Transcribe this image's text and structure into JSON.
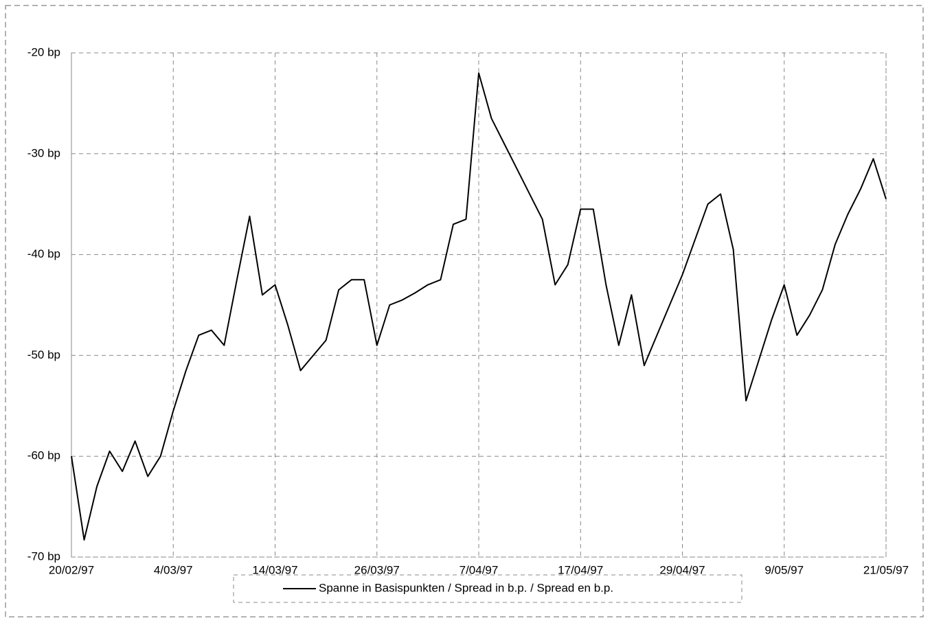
{
  "chart_data": {
    "type": "line",
    "categories": [
      "20/02/97",
      null,
      null,
      null,
      null,
      null,
      null,
      null,
      "4/03/97",
      null,
      null,
      null,
      null,
      null,
      null,
      null,
      "14/03/97",
      null,
      null,
      null,
      null,
      null,
      null,
      null,
      "26/03/97",
      null,
      null,
      null,
      null,
      null,
      null,
      null,
      "7/04/97",
      null,
      null,
      null,
      null,
      null,
      null,
      null,
      "17/04/97",
      null,
      null,
      null,
      null,
      null,
      null,
      null,
      "29/04/97",
      null,
      null,
      null,
      null,
      null,
      null,
      null,
      "9/05/97",
      null,
      null,
      null,
      null,
      null,
      null,
      null,
      "21/05/97"
    ],
    "series": [
      {
        "name": "Spanne in Basispunkten / Spread in b.p. / Spread en b.p.",
        "color": "#000000",
        "values": [
          -60,
          -68.3,
          -63,
          -59.5,
          -61.5,
          -58.5,
          -62,
          -60,
          -55.5,
          -51.5,
          -48,
          -47.5,
          -49,
          -42.5,
          -36.2,
          -44,
          -43,
          -47,
          -51.5,
          -50,
          -48.5,
          -43.5,
          -42.5,
          -42.5,
          -49,
          -45,
          -44.5,
          -43.8,
          -43,
          -42.5,
          -37,
          -36.5,
          -22,
          -26.5,
          -29,
          -31.5,
          -34,
          -36.5,
          -43,
          -41,
          -35.5,
          -35.5,
          -43,
          -49,
          -44,
          -51,
          -48,
          -45,
          -42,
          -38.5,
          -35,
          -34,
          -39.5,
          -54.5,
          -50.5,
          -46.5,
          -43,
          -48,
          -46,
          -43.5,
          -39,
          -36,
          -33.5,
          -30.5,
          -34.5
        ]
      }
    ],
    "ylim": [
      -70,
      -20
    ],
    "yticks": [
      {
        "value": -70,
        "label": "-70 bp"
      },
      {
        "value": -60,
        "label": "-60 bp"
      },
      {
        "value": -50,
        "label": "-50 bp"
      },
      {
        "value": -40,
        "label": "-40 bp"
      },
      {
        "value": -30,
        "label": "-30 bp"
      },
      {
        "value": -20,
        "label": "-20 bp"
      }
    ],
    "grid": true,
    "legend": "bottom"
  }
}
